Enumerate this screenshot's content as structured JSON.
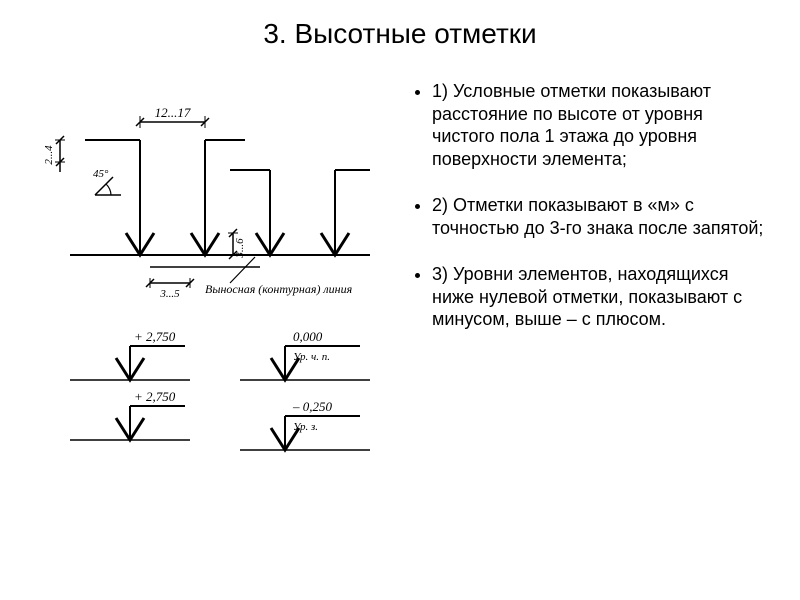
{
  "title": "3. Высотные отметки",
  "bullets": [
    "1) Условные отметки показывают расстояние по высоте от уровня чистого пола 1 этажа до уровня поверхности элемента;",
    "2) Отметки показывают в «м» с точностью до 3-го знака после запятой;",
    "3) Уровни элементов, находящихся ниже нулевой отметки, показывают с минусом, выше – с плюсом."
  ],
  "diagram": {
    "labels": {
      "angle": "45°",
      "dim_top": "12...17",
      "dim_h": "3...6",
      "dim_v": "2...4",
      "dim_base": "3...5",
      "leader_text": "Выносная (контурная) линия",
      "ex1_top": "+ 2,750",
      "ex1_bot": "+ 2,750",
      "ex2_top": "0,000",
      "ex2_top_sub": "Ур. ч. п.",
      "ex2_bot": "– 0,250",
      "ex2_bot_sub": "Ур. з."
    },
    "style": {
      "stroke": "#000000",
      "stroke_width": 2,
      "stroke_width_thick": 3,
      "font_family": "Times New Roman, serif",
      "font_size_dim": 13,
      "font_size_small": 11,
      "font_size_label": 13,
      "font_size_italic": 12
    },
    "arrow": {
      "half_width": 14,
      "height": 22
    }
  }
}
